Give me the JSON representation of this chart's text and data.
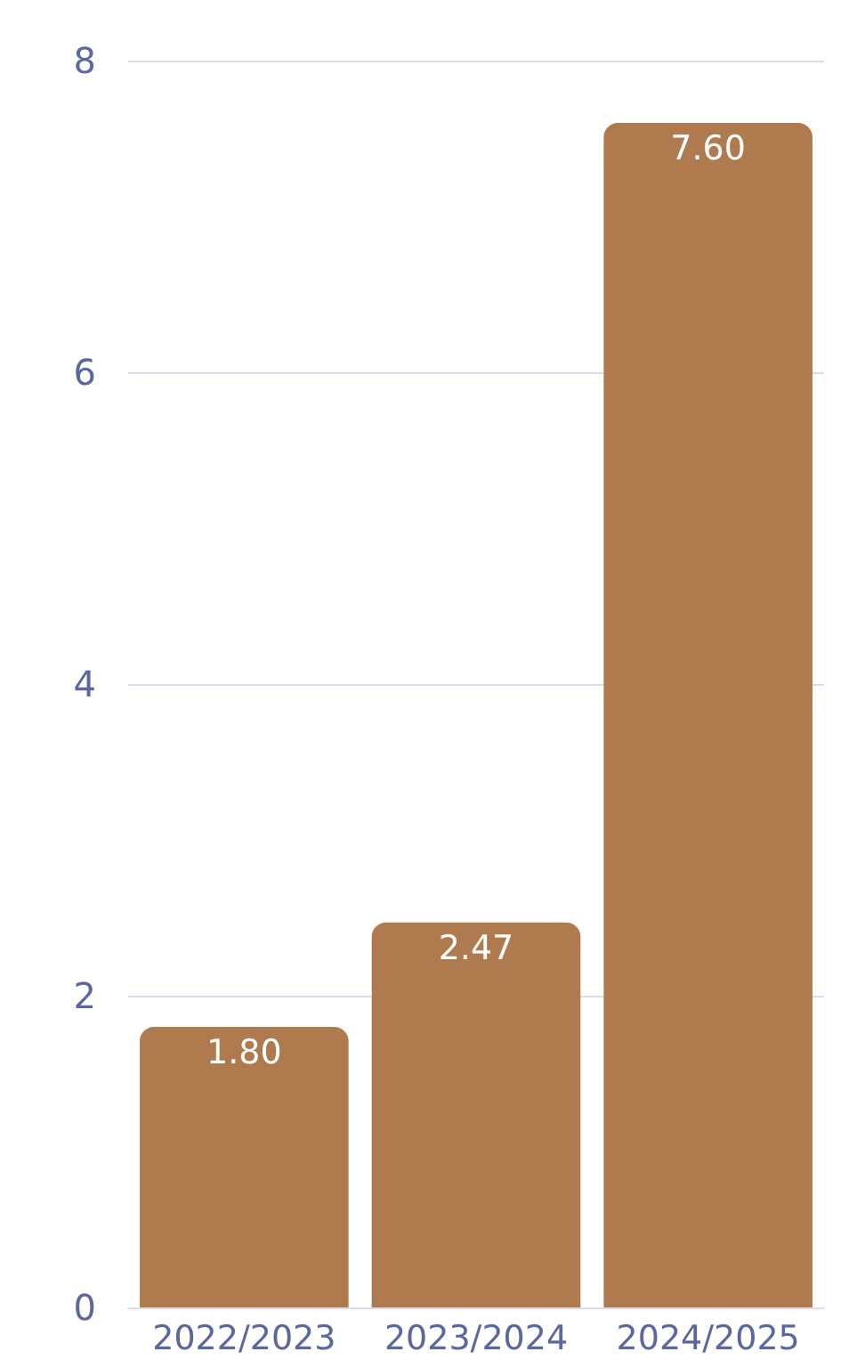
{
  "chart_data": {
    "type": "bar",
    "categories": [
      "2022/2023",
      "2023/2024",
      "2024/2025"
    ],
    "values": [
      1.8,
      2.47,
      7.6
    ],
    "color": "#ae7a4e",
    "ylim": [
      0,
      8
    ],
    "yticks": [
      0,
      2,
      4,
      6,
      8
    ],
    "value_labels": [
      "1.80",
      "2.47",
      "7.60"
    ],
    "grid": "y"
  }
}
